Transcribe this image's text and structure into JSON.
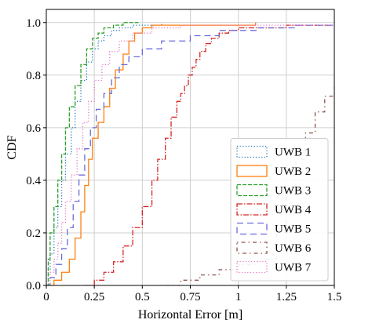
{
  "chart_data": {
    "type": "line",
    "title": "",
    "xlabel": "Horizontal Error [m]",
    "ylabel": "CDF",
    "xlim": [
      0,
      1.5
    ],
    "ylim": [
      0,
      1.05
    ],
    "xticks": [
      0,
      0.25,
      0.5,
      0.75,
      1.0,
      1.25,
      1.5
    ],
    "xtick_labels": [
      "0",
      "0.25",
      "0.5",
      "0.75",
      "1",
      "1.25",
      "1.5"
    ],
    "yticks": [
      0,
      0.2,
      0.4,
      0.6,
      0.8,
      1.0
    ],
    "ytick_labels": [
      "0.0",
      "0.2",
      "0.4",
      "0.6",
      "0.8",
      "1.0"
    ],
    "grid": true,
    "legend_position": "bottom-right",
    "series": [
      {
        "name": "UWB 1",
        "color": "#1f77b4",
        "dash": "1.2 2.4",
        "x": [
          0,
          0.01,
          0.02,
          0.04,
          0.06,
          0.08,
          0.1,
          0.13,
          0.15,
          0.18,
          0.21,
          0.24,
          0.27,
          0.3,
          0.34,
          0.38,
          0.45,
          0.6
        ],
        "y": [
          0,
          0.06,
          0.12,
          0.22,
          0.3,
          0.4,
          0.5,
          0.6,
          0.7,
          0.78,
          0.85,
          0.9,
          0.93,
          0.95,
          0.97,
          0.98,
          0.99,
          1.0
        ]
      },
      {
        "name": "UWB 2",
        "color": "#ff7f0e",
        "dash": "",
        "x": [
          0,
          0.04,
          0.08,
          0.12,
          0.15,
          0.18,
          0.2,
          0.22,
          0.24,
          0.27,
          0.3,
          0.33,
          0.36,
          0.4,
          0.43,
          0.46,
          0.5,
          0.55,
          0.6,
          1.09
        ],
        "y": [
          0,
          0.02,
          0.05,
          0.1,
          0.18,
          0.28,
          0.38,
          0.48,
          0.56,
          0.62,
          0.68,
          0.75,
          0.82,
          0.88,
          0.93,
          0.96,
          0.98,
          0.99,
          0.99,
          1.0
        ]
      },
      {
        "name": "UWB 3",
        "color": "#2ca02c",
        "dash": "5 2",
        "x": [
          0,
          0.01,
          0.02,
          0.04,
          0.06,
          0.08,
          0.1,
          0.12,
          0.15,
          0.18,
          0.21,
          0.24,
          0.27,
          0.3,
          0.35,
          0.4,
          0.48
        ],
        "y": [
          0,
          0.1,
          0.2,
          0.3,
          0.4,
          0.5,
          0.6,
          0.68,
          0.76,
          0.84,
          0.9,
          0.94,
          0.96,
          0.98,
          0.99,
          1.0,
          1.0
        ]
      },
      {
        "name": "UWB 4",
        "color": "#d62728",
        "dash": "7 2 1.5 2",
        "x": [
          0.2,
          0.25,
          0.3,
          0.35,
          0.4,
          0.45,
          0.5,
          0.55,
          0.58,
          0.62,
          0.65,
          0.68,
          0.7,
          0.72,
          0.74,
          0.76,
          0.78,
          0.8,
          0.83,
          0.86,
          0.9,
          0.95,
          1.0,
          1.25,
          1.5
        ],
        "y": [
          0,
          0.02,
          0.05,
          0.09,
          0.15,
          0.22,
          0.3,
          0.4,
          0.48,
          0.56,
          0.64,
          0.7,
          0.73,
          0.76,
          0.8,
          0.83,
          0.86,
          0.89,
          0.92,
          0.94,
          0.96,
          0.97,
          0.98,
          0.99,
          0.99
        ]
      },
      {
        "name": "UWB 5",
        "color": "#6b6bdf",
        "dash": "8 5",
        "x": [
          0,
          0.02,
          0.05,
          0.08,
          0.11,
          0.14,
          0.17,
          0.2,
          0.23,
          0.26,
          0.3,
          0.34,
          0.38,
          0.43,
          0.5,
          0.6,
          0.75,
          0.9,
          1.1,
          1.3,
          1.5
        ],
        "y": [
          0,
          0.03,
          0.08,
          0.14,
          0.22,
          0.32,
          0.42,
          0.52,
          0.6,
          0.67,
          0.73,
          0.79,
          0.84,
          0.87,
          0.9,
          0.93,
          0.95,
          0.97,
          0.98,
          0.99,
          0.99
        ]
      },
      {
        "name": "UWB 6",
        "color": "#8c564b",
        "dash": "1.5 4 5 4",
        "x": [
          0.6,
          0.7,
          0.8,
          0.9,
          1.0,
          1.1,
          1.2,
          1.25,
          1.3,
          1.35,
          1.4,
          1.45,
          1.5
        ],
        "y": [
          0,
          0.02,
          0.04,
          0.06,
          0.08,
          0.1,
          0.2,
          0.36,
          0.48,
          0.58,
          0.66,
          0.72,
          0.78
        ]
      },
      {
        "name": "UWB 7",
        "color": "#e377c2",
        "dash": "1.2 2.4",
        "x": [
          0,
          0.02,
          0.04,
          0.06,
          0.08,
          0.1,
          0.13,
          0.16,
          0.19,
          0.22,
          0.25,
          0.29,
          0.33,
          0.38,
          0.45,
          0.55,
          0.7,
          0.9,
          1.1,
          1.3,
          1.5
        ],
        "y": [
          0,
          0.05,
          0.1,
          0.16,
          0.24,
          0.32,
          0.42,
          0.52,
          0.62,
          0.7,
          0.78,
          0.84,
          0.89,
          0.93,
          0.96,
          0.98,
          0.99,
          0.99,
          0.99,
          0.99,
          1.0
        ]
      }
    ]
  }
}
